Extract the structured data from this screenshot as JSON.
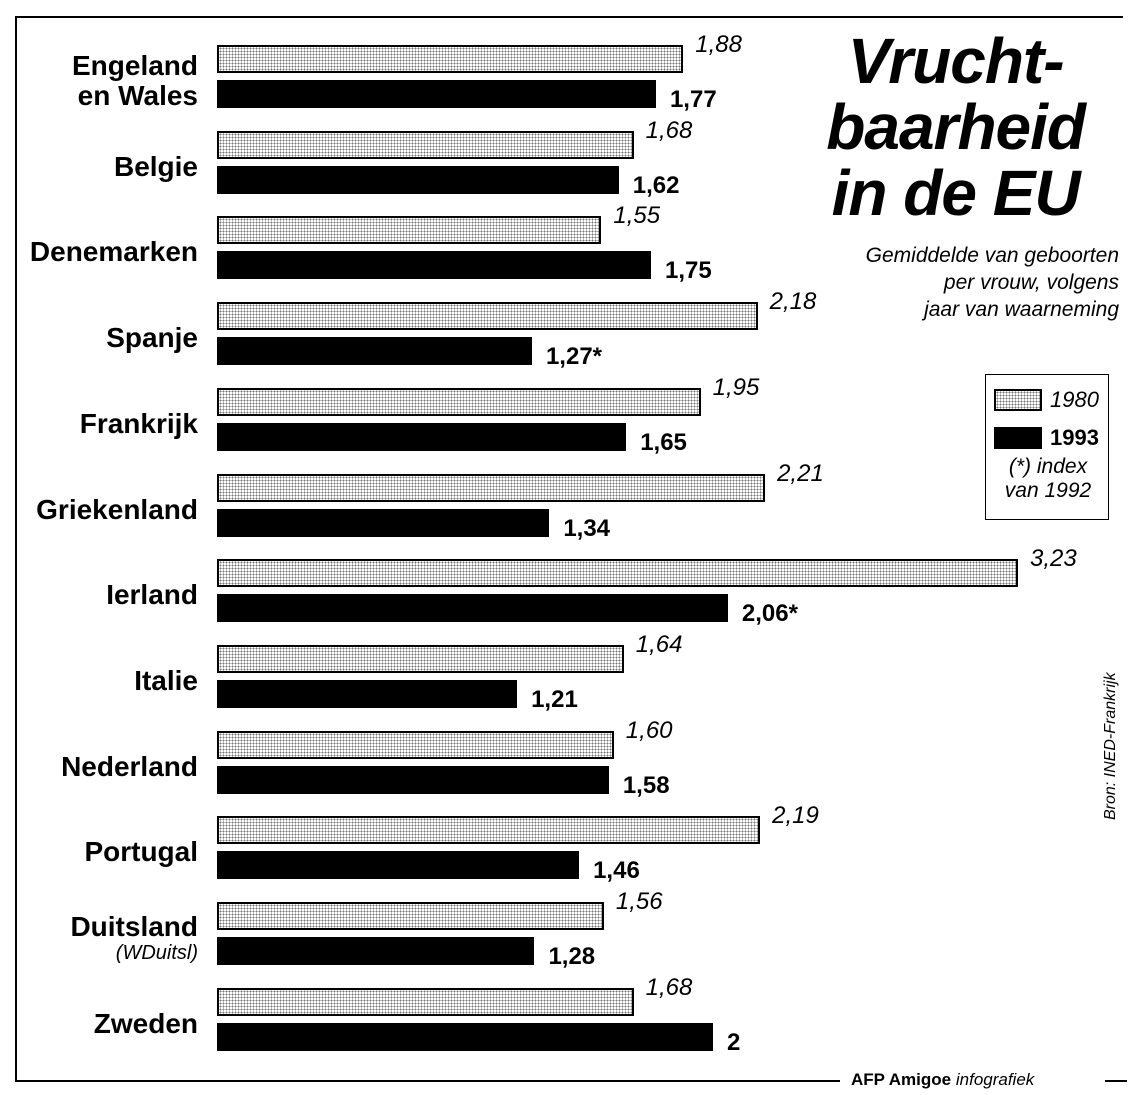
{
  "chart_data": {
    "type": "bar",
    "orientation": "horizontal",
    "title": "Vrucht-\nbaarheid\nin de EU",
    "subtitle": "Gemiddelde van geboorten\nper vrouw, volgens\njaar van waarneming",
    "categories": [
      "Engeland\nen Wales",
      "Belgie",
      "Denemarken",
      "Spanje",
      "Frankrijk",
      "Griekenland",
      "Ierland",
      "Italie",
      "Nederland",
      "Portugal",
      "Duitsland",
      "Zweden"
    ],
    "category_subtitles": [
      null,
      null,
      null,
      null,
      null,
      null,
      null,
      null,
      null,
      null,
      "(WDuitsl)",
      null
    ],
    "series": [
      {
        "name": "1980",
        "color": "#d9d9d9",
        "values": [
          1.88,
          1.68,
          1.55,
          2.18,
          1.95,
          2.21,
          3.23,
          1.64,
          1.6,
          2.19,
          1.56,
          1.68
        ],
        "value_labels": [
          "1,88",
          "1,68",
          "1,55",
          "2,18",
          "1,95",
          "2,21",
          "3,23",
          "1,64",
          "1,60",
          "2,19",
          "1,56",
          "1,68"
        ]
      },
      {
        "name": "1993",
        "color": "#000000",
        "values": [
          1.77,
          1.62,
          1.75,
          1.27,
          1.65,
          1.34,
          2.06,
          1.21,
          1.58,
          1.46,
          1.28,
          2
        ],
        "value_labels": [
          "1,77",
          "1,62",
          "1,75",
          "1,27*",
          "1,65",
          "1,34",
          "2,06*",
          "1,21",
          "1,58",
          "1,46",
          "1,28",
          "2"
        ]
      }
    ],
    "legend_note": "(*) index\nvan 1992",
    "source": "Bron:  INED-Frankrijk",
    "credit_brand": "AFP Amigoe",
    "credit_label": "infografiek"
  }
}
